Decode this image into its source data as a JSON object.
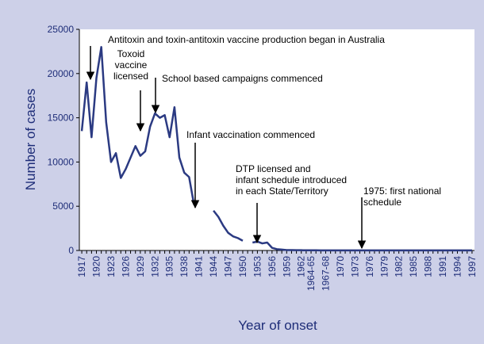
{
  "chart_data": {
    "type": "line",
    "ylabel": "Number of cases",
    "xlabel": "Year of onset",
    "categories": [
      "1917",
      null,
      null,
      "1920",
      null,
      null,
      "1923",
      null,
      null,
      "1926",
      null,
      null,
      "1929",
      null,
      null,
      "1932",
      null,
      null,
      "1935",
      null,
      null,
      "1938",
      null,
      null,
      "1941",
      null,
      null,
      "1944",
      null,
      null,
      "1947",
      null,
      null,
      "1950",
      null,
      null,
      "1953",
      null,
      null,
      "1956",
      null,
      null,
      "1959",
      null,
      null,
      "1962",
      null,
      "1964-65",
      null,
      null,
      "1967-68",
      null,
      null,
      "1970",
      null,
      null,
      "1973",
      null,
      null,
      "1976",
      null,
      null,
      "1979",
      null,
      null,
      "1982",
      null,
      null,
      "1985",
      null,
      null,
      "1988",
      null,
      null,
      "1991",
      null,
      null,
      "1994",
      null,
      null,
      "1997"
    ],
    "series": [
      {
        "name": "Cases",
        "color": "#2b3a82",
        "values": [
          13500,
          19000,
          12800,
          19500,
          23000,
          14500,
          10000,
          11000,
          8200,
          9200,
          10500,
          11800,
          10700,
          11200,
          14000,
          15500,
          15000,
          15300,
          12800,
          16200,
          10500,
          8800,
          8300,
          5200,
          null,
          null,
          null,
          4500,
          3800,
          2800,
          2000,
          1600,
          1400,
          1100,
          null,
          900,
          1000,
          800,
          900,
          300,
          150,
          100,
          50,
          50,
          30,
          30,
          20,
          20,
          20,
          10,
          10,
          10,
          10,
          10,
          10,
          10,
          10,
          10,
          10,
          10,
          10,
          10,
          10,
          10,
          10,
          10,
          10,
          10,
          10,
          10,
          10,
          10,
          10,
          10,
          10,
          10,
          10,
          10,
          10,
          10,
          10
        ]
      }
    ],
    "ylim": [
      0,
      25000
    ],
    "yticks": [
      0,
      5000,
      10000,
      15000,
      20000,
      25000
    ],
    "annotations": [
      {
        "lines": [
          "Antitoxin and toxin-antitoxin vaccine production began in Australia"
        ]
      },
      {
        "lines": [
          "Toxoid",
          "vaccine",
          "licensed"
        ]
      },
      {
        "lines": [
          "School based campaigns commenced"
        ]
      },
      {
        "lines": [
          "Infant vaccination commenced"
        ]
      },
      {
        "lines": [
          "DTP licensed and",
          "infant schedule introduced",
          "in each State/Territory"
        ]
      },
      {
        "lines": [
          "1975: first national",
          "schedule"
        ]
      }
    ]
  }
}
